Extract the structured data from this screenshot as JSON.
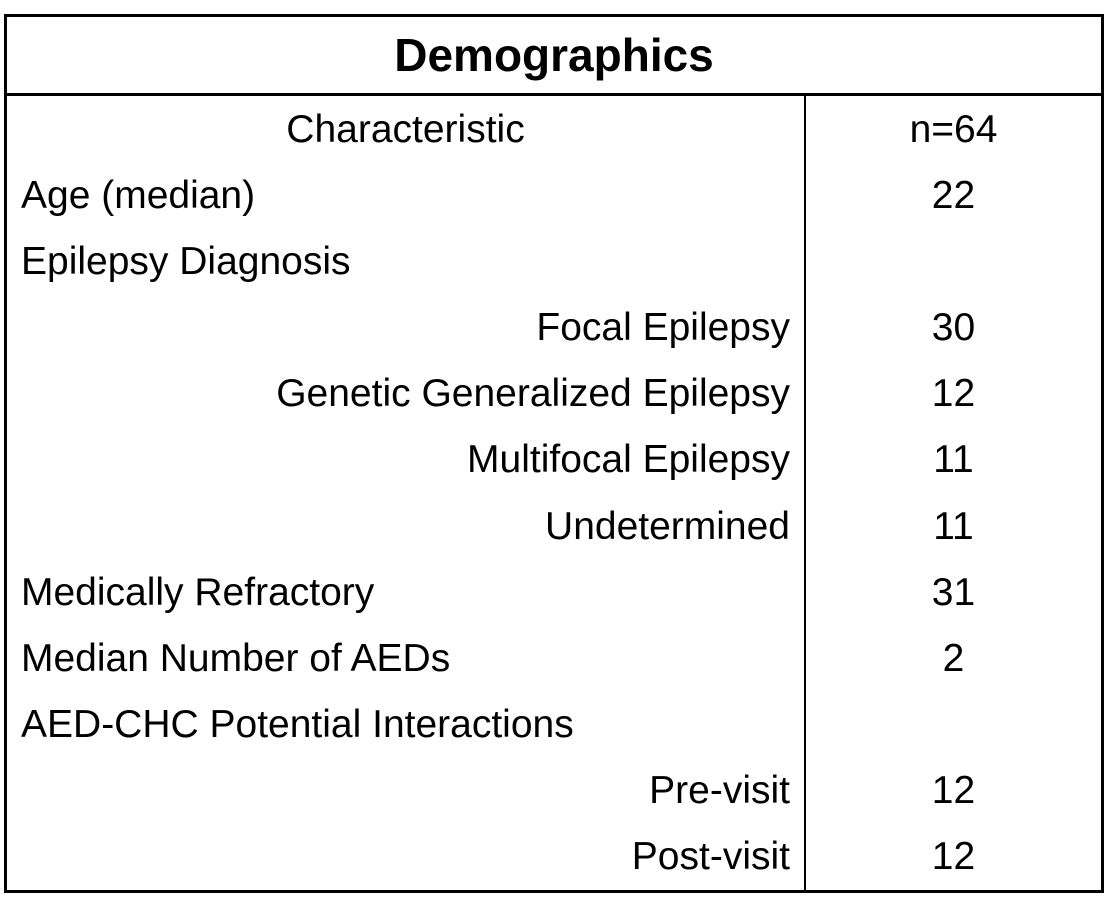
{
  "title": "Demographics",
  "colors": {
    "text": "#000000",
    "border": "#000000",
    "background": "#ffffff"
  },
  "header": {
    "characteristic": "Characteristic",
    "count": "n=64"
  },
  "rows": [
    {
      "label": "Age (median)",
      "value": "22",
      "align": "left"
    },
    {
      "label": "Epilepsy Diagnosis",
      "value": "",
      "align": "left"
    },
    {
      "label": "Focal Epilepsy",
      "value": "30",
      "align": "right"
    },
    {
      "label": "Genetic Generalized Epilepsy",
      "value": "12",
      "align": "right"
    },
    {
      "label": "Multifocal Epilepsy",
      "value": "11",
      "align": "right"
    },
    {
      "label": "Undetermined",
      "value": "11",
      "align": "right"
    },
    {
      "label": "Medically Refractory",
      "value": "31",
      "align": "left"
    },
    {
      "label": "Median Number of AEDs",
      "value": "2",
      "align": "left"
    },
    {
      "label": "AED-CHC Potential Interactions",
      "value": "",
      "align": "left"
    },
    {
      "label": "Pre-visit",
      "value": "12",
      "align": "right"
    },
    {
      "label": "Post-visit",
      "value": "12",
      "align": "right"
    }
  ],
  "chart_data": {
    "type": "table",
    "title": "Demographics",
    "columns": [
      "Characteristic",
      "n=64"
    ],
    "cells": [
      [
        "Age (median)",
        "22"
      ],
      [
        "Epilepsy Diagnosis",
        ""
      ],
      [
        "Focal Epilepsy",
        "30"
      ],
      [
        "Genetic Generalized Epilepsy",
        "12"
      ],
      [
        "Multifocal Epilepsy",
        "11"
      ],
      [
        "Undetermined",
        "11"
      ],
      [
        "Medically Refractory",
        "31"
      ],
      [
        "Median Number of AEDs",
        "2"
      ],
      [
        "AED-CHC Potential Interactions",
        ""
      ],
      [
        "Pre-visit",
        "12"
      ],
      [
        "Post-visit",
        "12"
      ]
    ]
  }
}
